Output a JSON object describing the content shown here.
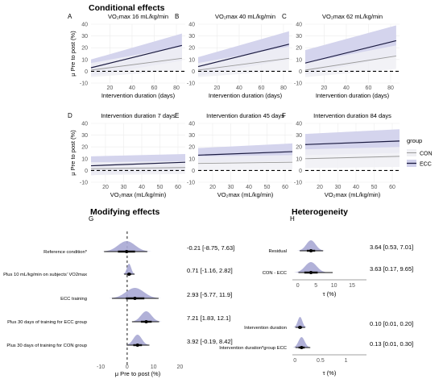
{
  "colors": {
    "con_line": "#999999",
    "con_ribbon": "#f0f0f4",
    "ecc_line": "#1a1a40",
    "ecc_ribbon": "#d2d2ec",
    "density_fill": "#a9a9d4",
    "reference_line": "#000000"
  },
  "sections": {
    "conditional": "Conditional effects",
    "modifying": "Modifying effects",
    "heterogeneity": "Heterogeneity"
  },
  "legend": {
    "title": "group",
    "items": [
      "CON",
      "ECC"
    ]
  },
  "chart_data": [
    {
      "id": "A",
      "letter": "A",
      "type": "line",
      "title": "VO₂max 16 mL/kg/min",
      "xlabel": "Intervention duration (days)",
      "ylabel": "μ Pre to post (%)",
      "xlim": [
        3,
        88
      ],
      "ylim": [
        -10,
        40
      ],
      "xticks": [
        20,
        40,
        60,
        80
      ],
      "yticks": [
        -10,
        0,
        10,
        20,
        30,
        40
      ],
      "reference_line": 0,
      "series": [
        {
          "name": "CON",
          "x": [
            3,
            85
          ],
          "y": [
            1,
            11
          ],
          "lower": [
            -5,
            1
          ],
          "upper": [
            7,
            21
          ]
        },
        {
          "name": "ECC",
          "x": [
            3,
            85
          ],
          "y": [
            3,
            22
          ],
          "lower": [
            -4,
            9
          ],
          "upper": [
            10,
            32
          ]
        }
      ]
    },
    {
      "id": "B",
      "letter": "B",
      "type": "line",
      "title": "VO₂max 40 mL/kg/min",
      "xlabel": "Intervention duration (days)",
      "ylabel": "",
      "xlim": [
        3,
        88
      ],
      "ylim": [
        -10,
        40
      ],
      "xticks": [
        20,
        40,
        60,
        80
      ],
      "yticks": [
        -10,
        0,
        10,
        20,
        30,
        40
      ],
      "reference_line": 0,
      "series": [
        {
          "name": "CON",
          "x": [
            3,
            85
          ],
          "y": [
            1,
            11
          ],
          "lower": [
            -5,
            1
          ],
          "upper": [
            7,
            21
          ]
        },
        {
          "name": "ECC",
          "x": [
            3,
            85
          ],
          "y": [
            4,
            23
          ],
          "lower": [
            -4,
            10
          ],
          "upper": [
            12,
            34
          ]
        }
      ]
    },
    {
      "id": "C",
      "letter": "C",
      "type": "line",
      "title": "VO₂max 62 mL/kg/min",
      "xlabel": "Intervention duration (days)",
      "ylabel": "",
      "xlim": [
        3,
        88
      ],
      "ylim": [
        -10,
        40
      ],
      "xticks": [
        20,
        40,
        60,
        80
      ],
      "yticks": [
        -10,
        0,
        10,
        20,
        30,
        40
      ],
      "reference_line": 0,
      "series": [
        {
          "name": "CON",
          "x": [
            3,
            85
          ],
          "y": [
            1,
            13
          ],
          "lower": [
            -5,
            2
          ],
          "upper": [
            7,
            22
          ]
        },
        {
          "name": "ECC",
          "x": [
            3,
            85
          ],
          "y": [
            7,
            26
          ],
          "lower": [
            -3,
            13
          ],
          "upper": [
            18,
            39
          ]
        }
      ]
    },
    {
      "id": "D",
      "letter": "D",
      "type": "line",
      "title": "Intervention duration 7 days",
      "xlabel": "VO₂max (mL/kg/min)",
      "ylabel": "μ Pre to post (%)",
      "xlim": [
        12,
        64
      ],
      "ylim": [
        -10,
        40
      ],
      "xticks": [
        20,
        30,
        40,
        50,
        60
      ],
      "yticks": [
        -10,
        0,
        10,
        20,
        30,
        40
      ],
      "reference_line": 0,
      "series": [
        {
          "name": "CON",
          "x": [
            12,
            64
          ],
          "y": [
            1.5,
            2.5
          ],
          "lower": [
            -4,
            -3
          ],
          "upper": [
            7,
            8
          ]
        },
        {
          "name": "ECC",
          "x": [
            12,
            64
          ],
          "y": [
            4,
            7
          ],
          "lower": [
            -4,
            0
          ],
          "upper": [
            12,
            14
          ]
        }
      ]
    },
    {
      "id": "E",
      "letter": "E",
      "type": "line",
      "title": "Intervention duration 45 days",
      "xlabel": "VO₂max (mL/kg/min)",
      "ylabel": "",
      "xlim": [
        12,
        64
      ],
      "ylim": [
        -10,
        40
      ],
      "xticks": [
        20,
        30,
        40,
        50,
        60
      ],
      "yticks": [
        -10,
        0,
        10,
        20,
        30,
        40
      ],
      "reference_line": 0,
      "series": [
        {
          "name": "CON",
          "x": [
            12,
            64
          ],
          "y": [
            6,
            7
          ],
          "lower": [
            0,
            1
          ],
          "upper": [
            12,
            13
          ]
        },
        {
          "name": "ECC",
          "x": [
            12,
            64
          ],
          "y": [
            13,
            16
          ],
          "lower": [
            7,
            8
          ],
          "upper": [
            19,
            23
          ]
        }
      ]
    },
    {
      "id": "F",
      "letter": "F",
      "type": "line",
      "title": "Intervention duration 84 days",
      "xlabel": "VO₂max (mL/kg/min)",
      "ylabel": "",
      "xlim": [
        12,
        64
      ],
      "ylim": [
        -10,
        40
      ],
      "xticks": [
        20,
        30,
        40,
        50,
        60
      ],
      "yticks": [
        -10,
        0,
        10,
        20,
        30,
        40
      ],
      "reference_line": 0,
      "series": [
        {
          "name": "CON",
          "x": [
            12,
            64
          ],
          "y": [
            10,
            12
          ],
          "lower": [
            2,
            3
          ],
          "upper": [
            18,
            20
          ]
        },
        {
          "name": "ECC",
          "x": [
            12,
            64
          ],
          "y": [
            22,
            25
          ],
          "lower": [
            13,
            15
          ],
          "upper": [
            31,
            35
          ]
        }
      ]
    },
    {
      "id": "G",
      "letter": "G",
      "type": "interval",
      "xlabel": "μ Pre to post (%)",
      "xlim": [
        -14,
        22
      ],
      "xticks": [
        -10,
        0,
        10,
        20
      ],
      "reference_line": 0,
      "rows": [
        {
          "label": "Reference condition*",
          "estimate": -0.21,
          "lower": -8.75,
          "upper": 7.63,
          "annotation": "-0.21 [-8.75, 7.63]",
          "sd": 3.2,
          "inner_lower": -3.5,
          "inner_upper": 3.0
        },
        {
          "label": "Plus 10 mL/kg/min on subjects' VO2max",
          "estimate": 0.71,
          "lower": -1.16,
          "upper": 2.82,
          "annotation": "0.71 [-1.16, 2.82]",
          "sd": 0.8,
          "inner_lower": 0.0,
          "inner_upper": 1.5
        },
        {
          "label": "ECC training",
          "estimate": 2.93,
          "lower": -5.77,
          "upper": 11.9,
          "annotation": "2.93 [-5.77, 11.9]",
          "sd": 3.4,
          "inner_lower": -0.5,
          "inner_upper": 6.5
        },
        {
          "label": "Plus 30 days of training for ECC group",
          "estimate": 7.21,
          "lower": 1.83,
          "upper": 12.1,
          "annotation": "7.21 [1.83, 12.1]",
          "sd": 2.0,
          "inner_lower": 5.2,
          "inner_upper": 9.3
        },
        {
          "label": "Plus 30 days of training for CON group",
          "estimate": 3.92,
          "lower": -0.19,
          "upper": 8.42,
          "annotation": "3.92 [-0.19, 8.42]",
          "sd": 1.6,
          "inner_lower": 2.3,
          "inner_upper": 5.6
        }
      ]
    },
    {
      "id": "H",
      "letter": "H",
      "type": "interval",
      "xlabel": "τ (%)",
      "panels": [
        {
          "xlim": [
            -1.5,
            19
          ],
          "xticks": [
            0,
            5,
            10,
            15
          ],
          "rows": [
            {
              "label": "Residual",
              "estimate": 3.64,
              "lower": 0.53,
              "upper": 7.01,
              "annotation": "3.64 [0.53, 7.01]",
              "sd": 1.3,
              "inner_lower": 2.5,
              "inner_upper": 4.8
            },
            {
              "label": "CON - ECC",
              "estimate": 3.63,
              "lower": 0.17,
              "upper": 9.65,
              "annotation": "3.63 [0.17, 9.65]",
              "sd": 1.6,
              "inner_lower": 1.8,
              "inner_upper": 5.5
            }
          ]
        },
        {
          "xlim": [
            -0.05,
            1.4
          ],
          "xticks": [
            0.0,
            0.5,
            1.0
          ],
          "rows": [
            {
              "label": "Intervention duration",
              "estimate": 0.1,
              "lower": 0.01,
              "upper": 0.2,
              "annotation": "0.10 [0.01, 0.20]",
              "sd": 0.045,
              "inner_lower": 0.06,
              "inner_upper": 0.14
            },
            {
              "label": "Intervention duration*group ECC",
              "estimate": 0.13,
              "lower": 0.01,
              "upper": 0.3,
              "annotation": "0.13 [0.01, 0.30]",
              "sd": 0.06,
              "inner_lower": 0.07,
              "inner_upper": 0.19
            }
          ]
        }
      ]
    }
  ]
}
